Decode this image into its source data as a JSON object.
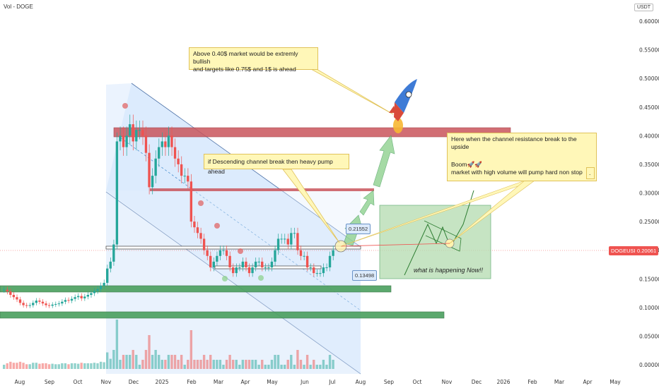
{
  "header": {
    "indicator": "Vol - DOGE",
    "unit": "USDT"
  },
  "chart_data": {
    "type": "candlestick",
    "symbol": "DOGEUSDT",
    "current_price": "0.20061",
    "y_ticks": [
      "0.60000",
      "0.55000",
      "0.50000",
      "0.45000",
      "0.40000",
      "0.35000",
      "0.30000",
      "0.25000",
      "0.20000",
      "0.15000",
      "0.10000",
      "0.05000",
      "0.00000"
    ],
    "x_ticks": [
      "Aug",
      "Sep",
      "Oct",
      "Nov",
      "Dec",
      "2025",
      "Feb",
      "Mar",
      "Apr",
      "May",
      "Jun",
      "Jul",
      "Aug",
      "Sep",
      "Oct",
      "Nov",
      "Dec",
      "2026",
      "Feb",
      "Mar",
      "Apr",
      "May"
    ],
    "ylim": [
      0.0,
      0.6
    ],
    "channel_top_label": "0.21552",
    "channel_bottom_label": "0.13498",
    "resistance_zone": [
      0.405,
      0.414
    ],
    "support_zone_1": [
      0.133,
      0.142
    ],
    "support_zone_2": [
      0.083,
      0.092
    ],
    "levels": [
      0.305,
      0.205,
      0.17
    ],
    "colors": {
      "up": "#26a69a",
      "down": "#ef5350",
      "channel": "#90caf9",
      "resistance": "#c9555c",
      "support": "#4a9f5e",
      "arrow": "#8fd18f"
    }
  },
  "annotations": {
    "bullish_note_line1": "Above 0.40$ market would be extremly bullish",
    "bullish_note_line2": "and targets like 0.75$ and 1$ is ahead",
    "channel_note": "if Descending channel break then heavy pump ahead",
    "breakout_note_line1": "Here when the channel resistance break to the upside",
    "breakout_note_line2": "Boom🚀🚀",
    "breakout_note_line3": "market with high volume will pump hard non stop",
    "now_label": "what is happening Now!!",
    "dot": "."
  }
}
